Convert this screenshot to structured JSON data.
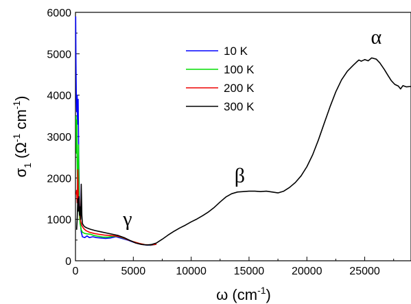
{
  "chart_data": {
    "type": "line",
    "xlabel": "ω (cm",
    "xlabel_sup": "-1",
    "xlabel_close": ")",
    "ylabel_parts": [
      "σ",
      "1",
      " (Ω",
      "-1",
      " cm",
      "-1",
      ")"
    ],
    "xlim": [
      0,
      29000
    ],
    "ylim": [
      0,
      6000
    ],
    "xticks": [
      0,
      5000,
      10000,
      15000,
      20000,
      25000
    ],
    "yticks": [
      0,
      1000,
      2000,
      3000,
      4000,
      5000,
      6000
    ],
    "legend_position": "upper-center",
    "annotations": [
      {
        "text": "α",
        "x": 26000,
        "y": 5250
      },
      {
        "text": "β",
        "x": 14200,
        "y": 1900
      },
      {
        "text": "γ",
        "x": 4500,
        "y": 850
      }
    ],
    "series": [
      {
        "name": "10 K",
        "color": "#0000ff",
        "points": [
          [
            20,
            5900
          ],
          [
            40,
            4800
          ],
          [
            70,
            4000
          ],
          [
            100,
            3600
          ],
          [
            150,
            4000
          ],
          [
            180,
            3300
          ],
          [
            230,
            3900
          ],
          [
            280,
            2600
          ],
          [
            330,
            1500
          ],
          [
            400,
            1000
          ],
          [
            500,
            700
          ],
          [
            600,
            580
          ],
          [
            800,
            560
          ],
          [
            1000,
            600
          ],
          [
            1200,
            560
          ],
          [
            1500,
            580
          ],
          [
            1800,
            560
          ],
          [
            2200,
            550
          ],
          [
            2600,
            540
          ],
          [
            3000,
            550
          ],
          [
            3500,
            580
          ],
          [
            4000,
            540
          ],
          [
            4500,
            500
          ],
          [
            5000,
            450
          ],
          [
            5500,
            410
          ],
          [
            6000,
            385
          ],
          [
            6500,
            375
          ],
          [
            7000,
            400
          ]
        ]
      },
      {
        "name": "100 K",
        "color": "#00dd00",
        "points": [
          [
            50,
            3500
          ],
          [
            80,
            2600
          ],
          [
            110,
            3400
          ],
          [
            150,
            2400
          ],
          [
            200,
            1500
          ],
          [
            260,
            2800
          ],
          [
            320,
            1200
          ],
          [
            400,
            900
          ],
          [
            500,
            750
          ],
          [
            600,
            690
          ],
          [
            800,
            660
          ],
          [
            1000,
            650
          ],
          [
            1300,
            640
          ],
          [
            1600,
            610
          ],
          [
            2000,
            590
          ],
          [
            2400,
            570
          ],
          [
            2800,
            570
          ],
          [
            3200,
            590
          ],
          [
            3600,
            590
          ],
          [
            4000,
            560
          ],
          [
            4500,
            510
          ],
          [
            5000,
            460
          ],
          [
            5500,
            420
          ],
          [
            6000,
            390
          ],
          [
            6500,
            380
          ],
          [
            7000,
            400
          ]
        ]
      },
      {
        "name": "200 K",
        "color": "#ee0000",
        "points": [
          [
            60,
            1600
          ],
          [
            100,
            1700
          ],
          [
            150,
            1400
          ],
          [
            200,
            2200
          ],
          [
            260,
            1300
          ],
          [
            320,
            1500
          ],
          [
            380,
            1100
          ],
          [
            450,
            950
          ],
          [
            550,
            850
          ],
          [
            700,
            780
          ],
          [
            900,
            730
          ],
          [
            1200,
            690
          ],
          [
            1600,
            660
          ],
          [
            2000,
            640
          ],
          [
            2500,
            620
          ],
          [
            3000,
            610
          ],
          [
            3500,
            600
          ],
          [
            4000,
            570
          ],
          [
            4500,
            510
          ],
          [
            5000,
            460
          ],
          [
            5500,
            420
          ],
          [
            6000,
            390
          ],
          [
            6500,
            385
          ],
          [
            7000,
            400
          ]
        ]
      },
      {
        "name": "300 K",
        "color": "#000000",
        "points": [
          [
            100,
            750
          ],
          [
            150,
            1000
          ],
          [
            200,
            1500
          ],
          [
            250,
            1200
          ],
          [
            300,
            1550
          ],
          [
            350,
            1100
          ],
          [
            400,
            1300
          ],
          [
            450,
            1000
          ],
          [
            500,
            1850
          ],
          [
            550,
            1100
          ],
          [
            600,
            900
          ],
          [
            700,
            850
          ],
          [
            800,
            820
          ],
          [
            1000,
            790
          ],
          [
            1300,
            760
          ],
          [
            1700,
            730
          ],
          [
            2200,
            700
          ],
          [
            2700,
            670
          ],
          [
            3200,
            640
          ],
          [
            3700,
            610
          ],
          [
            4200,
            560
          ],
          [
            4700,
            490
          ],
          [
            5200,
            430
          ],
          [
            5700,
            395
          ],
          [
            6200,
            380
          ],
          [
            6600,
            395
          ],
          [
            7000,
            430
          ],
          [
            7500,
            520
          ],
          [
            8000,
            620
          ],
          [
            8500,
            710
          ],
          [
            9000,
            790
          ],
          [
            9500,
            860
          ],
          [
            10000,
            940
          ],
          [
            10500,
            1010
          ],
          [
            11000,
            1090
          ],
          [
            11500,
            1180
          ],
          [
            12000,
            1290
          ],
          [
            12500,
            1420
          ],
          [
            13000,
            1540
          ],
          [
            13500,
            1620
          ],
          [
            14000,
            1660
          ],
          [
            14500,
            1670
          ],
          [
            15000,
            1680
          ],
          [
            15500,
            1680
          ],
          [
            16000,
            1670
          ],
          [
            16500,
            1680
          ],
          [
            17000,
            1660
          ],
          [
            17500,
            1640
          ],
          [
            18000,
            1680
          ],
          [
            18500,
            1770
          ],
          [
            19000,
            1890
          ],
          [
            19500,
            2050
          ],
          [
            20000,
            2270
          ],
          [
            20500,
            2560
          ],
          [
            21000,
            2920
          ],
          [
            21500,
            3320
          ],
          [
            22000,
            3720
          ],
          [
            22500,
            4080
          ],
          [
            23000,
            4370
          ],
          [
            23500,
            4580
          ],
          [
            24000,
            4720
          ],
          [
            24300,
            4800
          ],
          [
            24500,
            4850
          ],
          [
            24700,
            4820
          ],
          [
            25000,
            4860
          ],
          [
            25300,
            4830
          ],
          [
            25600,
            4900
          ],
          [
            26000,
            4870
          ],
          [
            26300,
            4780
          ],
          [
            26700,
            4620
          ],
          [
            27000,
            4480
          ],
          [
            27300,
            4350
          ],
          [
            27600,
            4260
          ],
          [
            27900,
            4220
          ],
          [
            28100,
            4150
          ],
          [
            28300,
            4230
          ],
          [
            28600,
            4200
          ],
          [
            29000,
            4210
          ]
        ]
      }
    ]
  }
}
